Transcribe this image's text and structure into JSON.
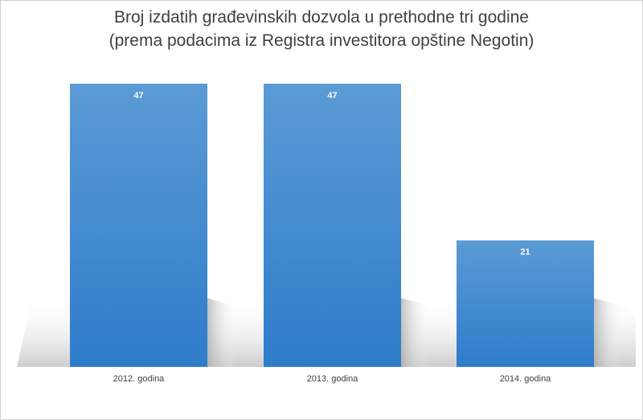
{
  "chart_data": {
    "type": "bar",
    "title_line1": "Broj izdatih građevinskih dozvola u prethodne tri godine",
    "title_line2": "(prema podacima iz Registra investitora opštine Negotin)",
    "categories": [
      "2012. godina",
      "2013. godina",
      "2014. godina"
    ],
    "values": [
      47,
      47,
      21
    ],
    "data_labels": [
      "47",
      "47",
      "21"
    ],
    "xlabel": "",
    "ylabel": "",
    "ylim": [
      0,
      47
    ],
    "grid": false,
    "legend": "none",
    "colors": {
      "bar_top": "#5b9bd5",
      "bar_bottom": "#2e7ccb",
      "floor_shadow": "#c8c8c8",
      "text": "#404040"
    }
  }
}
